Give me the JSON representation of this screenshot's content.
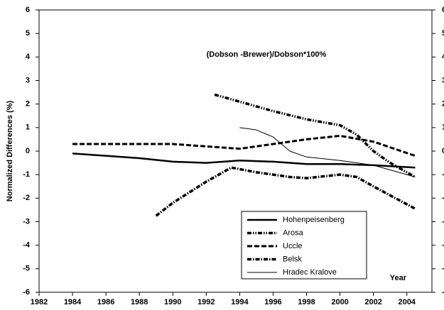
{
  "chart_data": {
    "type": "line",
    "annotation": "(Dobson -Brewer)/Dobson*100%",
    "ylabel": "Normalized Differences (%)",
    "xlabel": "Year",
    "xlim": [
      1982,
      2005.5
    ],
    "xticks": [
      1982,
      1984,
      1986,
      1988,
      1990,
      1992,
      1994,
      1996,
      1998,
      2000,
      2002,
      2004
    ],
    "ylim": [
      -6,
      6
    ],
    "yticks": [
      -6,
      -5,
      -4,
      -3,
      -2,
      -1,
      0,
      1,
      2,
      3,
      4,
      5,
      6
    ],
    "legend": "lower right",
    "series": [
      {
        "name": "Hohenpeisenberg",
        "color": "#000000",
        "style": "solid-thick",
        "x": [
          1984,
          1986,
          1988,
          1990,
          1992,
          1994,
          1996,
          1998,
          2000,
          2002,
          2004.5
        ],
        "values": [
          -0.1,
          -0.2,
          -0.3,
          -0.45,
          -0.5,
          -0.4,
          -0.45,
          -0.55,
          -0.55,
          -0.6,
          -0.7
        ]
      },
      {
        "name": "Arosa",
        "color": "#000000",
        "style": "dash-dot-dot",
        "x": [
          1992.5,
          1994,
          1996,
          1998,
          2000,
          2001,
          2002,
          2003,
          2004.5
        ],
        "values": [
          2.4,
          2.1,
          1.7,
          1.35,
          1.1,
          0.7,
          0.0,
          -0.5,
          -1.1
        ]
      },
      {
        "name": "Uccle",
        "color": "#000000",
        "style": "dashed",
        "x": [
          1984,
          1986,
          1988,
          1990,
          1992,
          1994,
          1996,
          1998,
          2000,
          2002,
          2004.5
        ],
        "values": [
          0.3,
          0.3,
          0.3,
          0.3,
          0.2,
          0.1,
          0.3,
          0.5,
          0.65,
          0.4,
          -0.2
        ]
      },
      {
        "name": "Belsk",
        "color": "#000000",
        "style": "dash-dot",
        "x": [
          1989,
          1990,
          1992,
          1993.5,
          1995,
          1997,
          1998,
          2000,
          2001,
          2002,
          2004.5
        ],
        "values": [
          -2.75,
          -2.2,
          -1.3,
          -0.7,
          -0.9,
          -1.1,
          -1.15,
          -1.0,
          -1.1,
          -1.5,
          -2.45
        ]
      },
      {
        "name": "Hradec Kralove",
        "color": "#000000",
        "style": "thin",
        "x": [
          1994,
          1995,
          1996,
          1997,
          1998,
          2000,
          2002,
          2004.5
        ],
        "values": [
          1.0,
          0.9,
          0.6,
          0.0,
          -0.25,
          -0.4,
          -0.6,
          -1.1
        ]
      }
    ]
  }
}
